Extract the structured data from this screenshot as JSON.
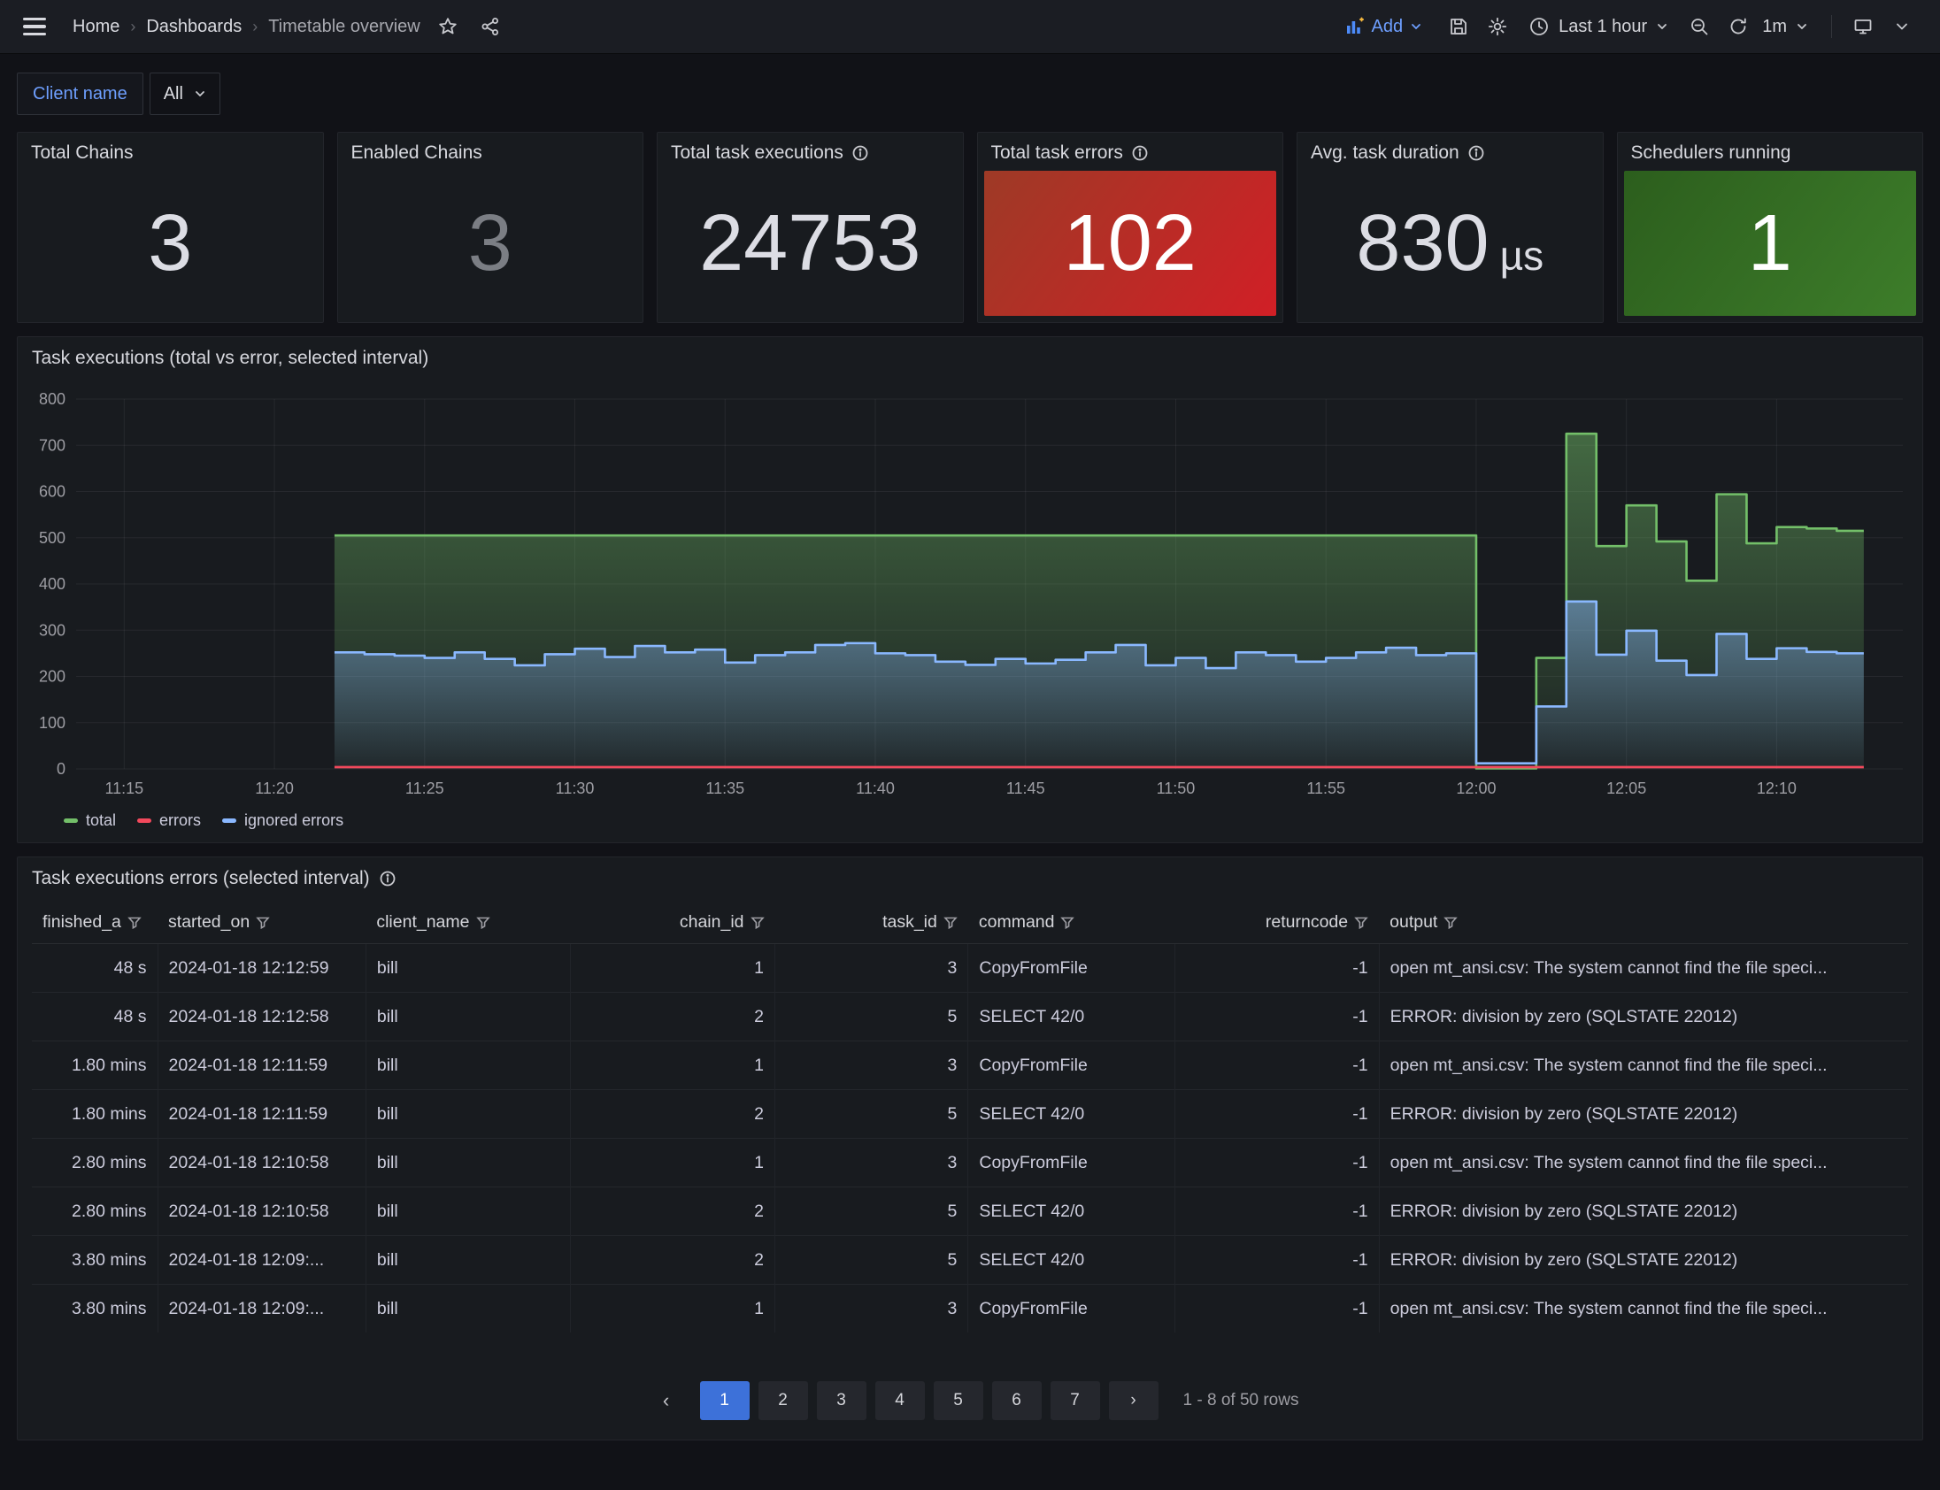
{
  "nav": {
    "breadcrumbs": [
      {
        "label": "Home"
      },
      {
        "label": "Dashboards"
      },
      {
        "label": "Timetable overview"
      }
    ],
    "add_label": "Add",
    "time_range": "Last 1 hour",
    "refresh_interval": "1m"
  },
  "filters": {
    "label": "Client name",
    "value": "All"
  },
  "stats": {
    "panels": [
      {
        "title": "Total Chains",
        "value": "3",
        "suffix": "",
        "info": false,
        "bg": null,
        "value_color": "#dcdde4"
      },
      {
        "title": "Enabled Chains",
        "value": "3",
        "suffix": "",
        "info": false,
        "bg": null,
        "value_color": "#7b7e84"
      },
      {
        "title": "Total task executions",
        "value": "24753",
        "suffix": "",
        "info": true,
        "bg": null,
        "value_color": "#dcdde4"
      },
      {
        "title": "Total task errors",
        "value": "102",
        "suffix": "",
        "info": true,
        "bg": [
          "#9e3a26",
          "#d11f26"
        ],
        "value_color": "#ffffff"
      },
      {
        "title": "Avg. task duration",
        "value": "830",
        "suffix": "µs",
        "info": true,
        "bg": null,
        "value_color": "#dcdde4"
      },
      {
        "title": "Schedulers running",
        "value": "1",
        "suffix": "",
        "info": false,
        "bg": [
          "#2c5e1d",
          "#3d7d2a"
        ],
        "value_color": "#ffffff"
      }
    ]
  },
  "chart_data": {
    "type": "area",
    "title": "Task executions (total vs error, selected interval)",
    "xlabel": "",
    "ylabel": "",
    "ylim": [
      0,
      800
    ],
    "y_ticks": [
      0,
      100,
      200,
      300,
      400,
      500,
      600,
      700,
      800
    ],
    "x_ticks": [
      "11:15",
      "11:20",
      "11:25",
      "11:30",
      "11:35",
      "11:40",
      "11:45",
      "11:50",
      "11:55",
      "12:00",
      "12:05",
      "12:10"
    ],
    "x_tick_interval_minutes": 5,
    "x_domain_minutes": [
      -1.6,
      59.2
    ],
    "grid": true,
    "legend_position": "bottom",
    "series": [
      {
        "name": "total",
        "color": "#73bf69",
        "points": [
          [
            7,
            505
          ],
          [
            45,
            1
          ],
          [
            47,
            240
          ],
          [
            48,
            725
          ],
          [
            49,
            482
          ],
          [
            50,
            570
          ],
          [
            51,
            492
          ],
          [
            52,
            407
          ],
          [
            53,
            594
          ],
          [
            54,
            488
          ],
          [
            55,
            523
          ],
          [
            56,
            520
          ],
          [
            57,
            515
          ],
          [
            57.9,
            515
          ]
        ]
      },
      {
        "name": "ignored errors",
        "color": "#8ab8ff",
        "points": [
          [
            7,
            252
          ],
          [
            8,
            248
          ],
          [
            9,
            245
          ],
          [
            10,
            240
          ],
          [
            11,
            252
          ],
          [
            12,
            238
          ],
          [
            13,
            224
          ],
          [
            14,
            248
          ],
          [
            15,
            260
          ],
          [
            16,
            242
          ],
          [
            17,
            266
          ],
          [
            18,
            252
          ],
          [
            19,
            258
          ],
          [
            20,
            230
          ],
          [
            21,
            246
          ],
          [
            22,
            252
          ],
          [
            23,
            268
          ],
          [
            24,
            272
          ],
          [
            25,
            250
          ],
          [
            26,
            246
          ],
          [
            27,
            232
          ],
          [
            28,
            225
          ],
          [
            29,
            238
          ],
          [
            30,
            228
          ],
          [
            31,
            236
          ],
          [
            32,
            252
          ],
          [
            33,
            268
          ],
          [
            34,
            224
          ],
          [
            35,
            240
          ],
          [
            36,
            218
          ],
          [
            37,
            252
          ],
          [
            38,
            246
          ],
          [
            39,
            232
          ],
          [
            40,
            240
          ],
          [
            41,
            252
          ],
          [
            42,
            262
          ],
          [
            43,
            246
          ],
          [
            44,
            250
          ],
          [
            45,
            12
          ],
          [
            47,
            135
          ],
          [
            48,
            362
          ],
          [
            49,
            247
          ],
          [
            50,
            299
          ],
          [
            51,
            234
          ],
          [
            52,
            203
          ],
          [
            53,
            292
          ],
          [
            54,
            238
          ],
          [
            55,
            261
          ],
          [
            56,
            253
          ],
          [
            57,
            250
          ],
          [
            57.9,
            250
          ]
        ]
      },
      {
        "name": "errors",
        "color": "#f2495c",
        "points": [
          [
            7,
            4
          ],
          [
            57.9,
            4
          ]
        ]
      }
    ]
  },
  "table": {
    "title": "Task executions errors (selected interval)",
    "info": true,
    "columns": [
      {
        "label": "finished_a",
        "align": "right",
        "header_align": "left",
        "width": "6.7%"
      },
      {
        "label": "started_on",
        "align": "left",
        "header_align": "left",
        "width": "11.1%"
      },
      {
        "label": "client_name",
        "align": "left",
        "header_align": "left",
        "width": "10.9%"
      },
      {
        "label": "chain_id",
        "align": "right",
        "header_align": "right",
        "width": "10.9%"
      },
      {
        "label": "task_id",
        "align": "right",
        "header_align": "right",
        "width": "10.3%"
      },
      {
        "label": "command",
        "align": "left",
        "header_align": "left",
        "width": "11.0%"
      },
      {
        "label": "returncode",
        "align": "right",
        "header_align": "right",
        "width": "10.9%"
      },
      {
        "label": "output",
        "align": "left",
        "header_align": "left",
        "width": "28.2%"
      }
    ],
    "rows": [
      [
        "48 s",
        "2024-01-18 12:12:59",
        "bill",
        "1",
        "3",
        "CopyFromFile",
        "-1",
        "open mt_ansi.csv: The system cannot find the file speci..."
      ],
      [
        "48 s",
        "2024-01-18 12:12:58",
        "bill",
        "2",
        "5",
        "SELECT 42/0",
        "-1",
        "ERROR: division by zero (SQLSTATE 22012)"
      ],
      [
        "1.80 mins",
        "2024-01-18 12:11:59",
        "bill",
        "1",
        "3",
        "CopyFromFile",
        "-1",
        "open mt_ansi.csv: The system cannot find the file speci..."
      ],
      [
        "1.80 mins",
        "2024-01-18 12:11:59",
        "bill",
        "2",
        "5",
        "SELECT 42/0",
        "-1",
        "ERROR: division by zero (SQLSTATE 22012)"
      ],
      [
        "2.80 mins",
        "2024-01-18 12:10:58",
        "bill",
        "1",
        "3",
        "CopyFromFile",
        "-1",
        "open mt_ansi.csv: The system cannot find the file speci..."
      ],
      [
        "2.80 mins",
        "2024-01-18 12:10:58",
        "bill",
        "2",
        "5",
        "SELECT 42/0",
        "-1",
        "ERROR: division by zero (SQLSTATE 22012)"
      ],
      [
        "3.80 mins",
        "2024-01-18 12:09:...",
        "bill",
        "2",
        "5",
        "SELECT 42/0",
        "-1",
        "ERROR: division by zero (SQLSTATE 22012)"
      ],
      [
        "3.80 mins",
        "2024-01-18 12:09:...",
        "bill",
        "1",
        "3",
        "CopyFromFile",
        "-1",
        "open mt_ansi.csv: The system cannot find the file speci..."
      ]
    ],
    "pagination": {
      "pages": [
        "1",
        "2",
        "3",
        "4",
        "5",
        "6",
        "7"
      ],
      "active": "1",
      "summary": "1 - 8 of 50 rows"
    }
  }
}
